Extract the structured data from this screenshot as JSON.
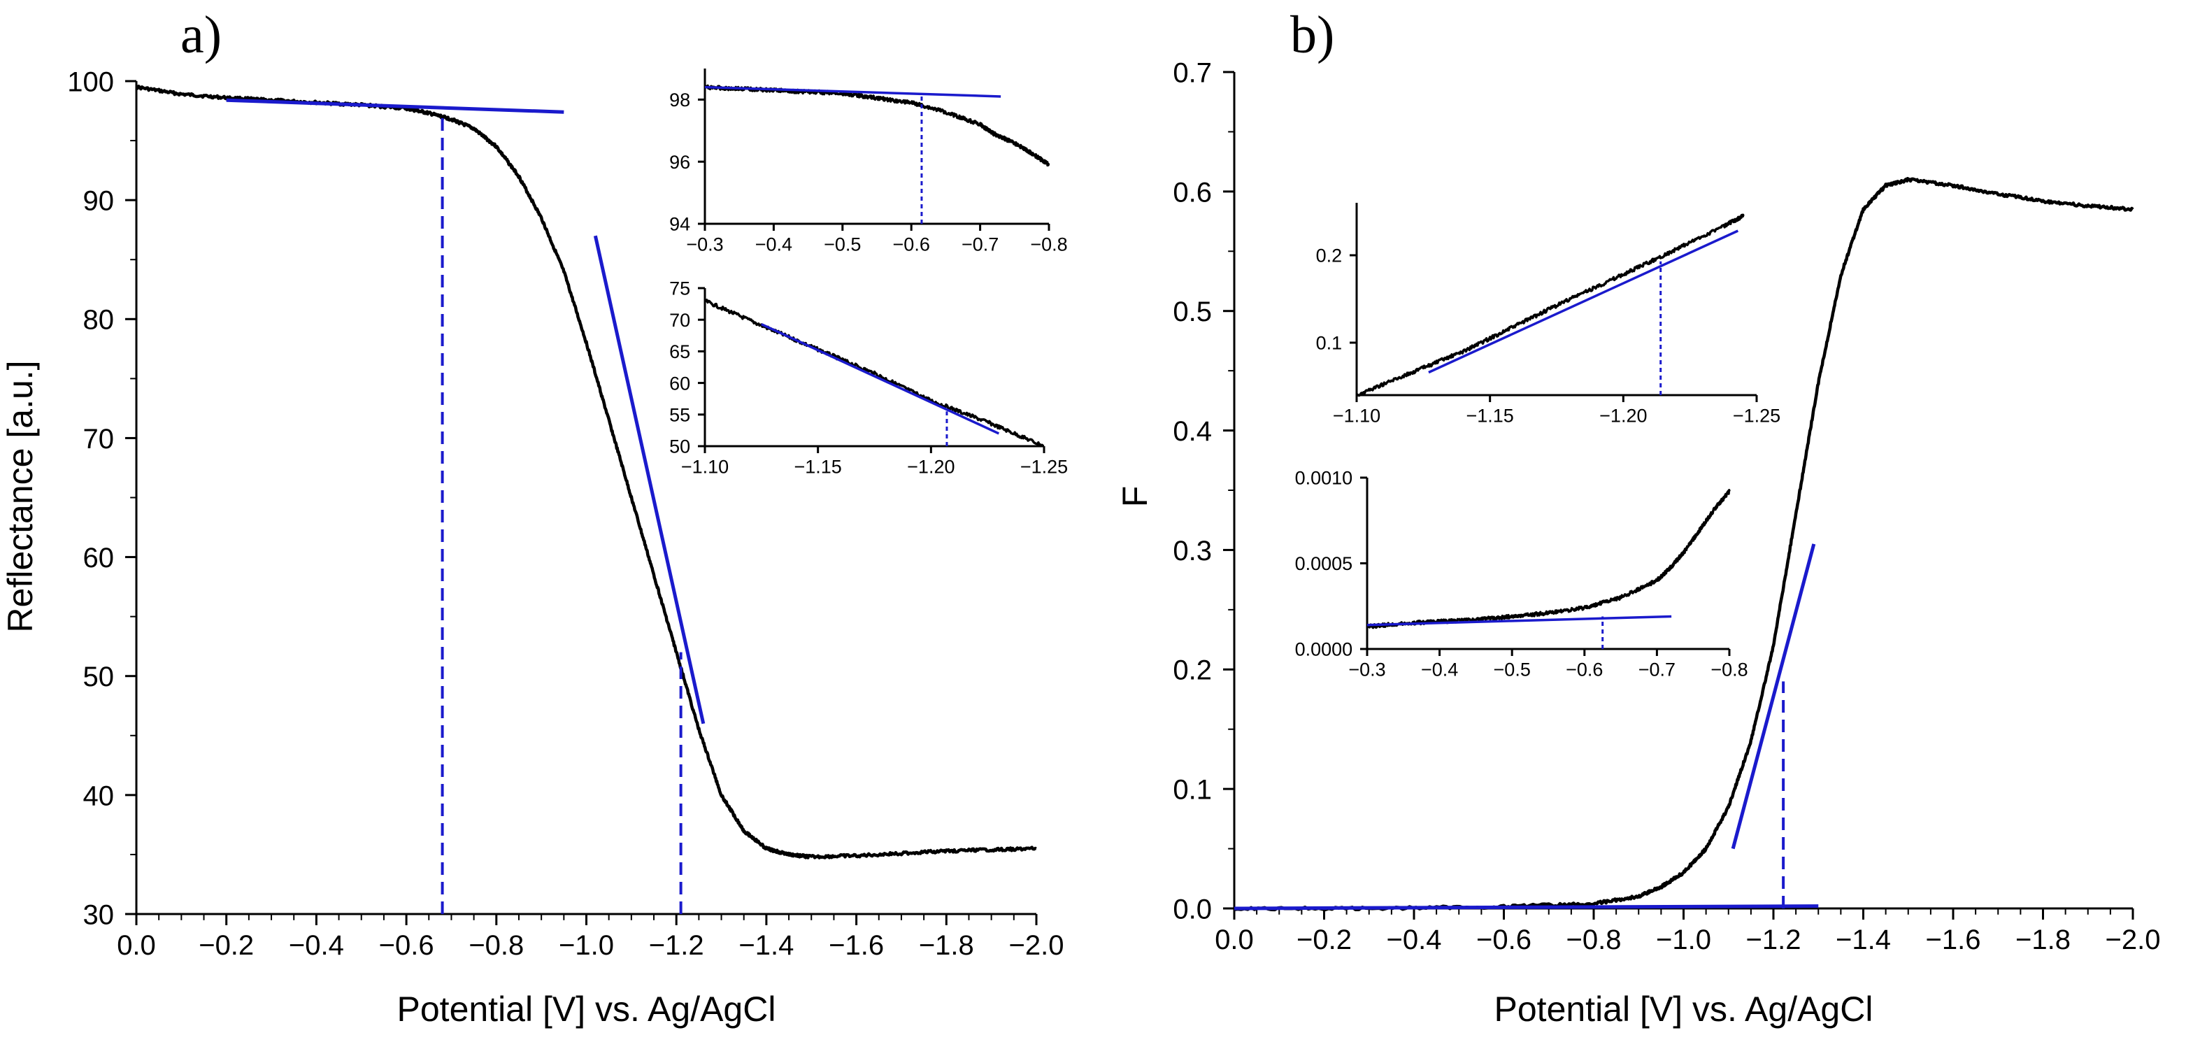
{
  "chart_data": [
    {
      "id": "a",
      "panel_label": "a)",
      "type": "line",
      "xlabel": "Potential [V] vs. Ag/AgCl",
      "ylabel": "Reflectance [a.u.]",
      "xlim": [
        0.0,
        -2.0
      ],
      "ylim": [
        30,
        100
      ],
      "x_ticks": [
        0.0,
        -0.2,
        -0.4,
        -0.6,
        -0.8,
        -1.0,
        -1.2,
        -1.4,
        -1.6,
        -1.8,
        -2.0
      ],
      "x_tick_labels": [
        "0.0",
        "−0.2",
        "−0.4",
        "−0.6",
        "−0.8",
        "−1.0",
        "−1.2",
        "−1.4",
        "−1.6",
        "−1.8",
        "−2.0"
      ],
      "y_ticks": [
        30,
        40,
        50,
        60,
        70,
        80,
        90,
        100
      ],
      "y_tick_labels": [
        "30",
        "40",
        "50",
        "60",
        "70",
        "80",
        "90",
        "100"
      ],
      "line_color": "#000000",
      "fit_color": "#1a1acc",
      "series": [
        {
          "name": "Reflectance",
          "x": [
            0.0,
            -0.1,
            -0.2,
            -0.3,
            -0.4,
            -0.5,
            -0.6,
            -0.65,
            -0.7,
            -0.75,
            -0.8,
            -0.85,
            -0.9,
            -0.95,
            -1.0,
            -1.05,
            -1.1,
            -1.15,
            -1.2,
            -1.25,
            -1.3,
            -1.35,
            -1.4,
            -1.45,
            -1.5,
            -1.6,
            -1.7,
            -1.8,
            -1.9,
            -2.0
          ],
          "y": [
            99.5,
            98.9,
            98.6,
            98.4,
            98.2,
            98.0,
            97.7,
            97.3,
            96.8,
            96.0,
            94.5,
            92.0,
            88.5,
            84.0,
            78.0,
            71.5,
            65.0,
            58.5,
            52.0,
            45.5,
            40.0,
            37.0,
            35.5,
            35.0,
            34.8,
            34.9,
            35.1,
            35.3,
            35.4,
            35.5
          ]
        }
      ],
      "fit_lines": [
        {
          "x": [
            -0.2,
            -0.95
          ],
          "y": [
            98.4,
            97.4
          ]
        },
        {
          "x": [
            -1.02,
            -1.26
          ],
          "y": [
            87.0,
            46.0
          ]
        }
      ],
      "guides": [
        {
          "x": -0.68,
          "y_from": 30,
          "y_to": 97.4
        },
        {
          "x": -1.21,
          "y_from": 30,
          "y_to": 52.0
        }
      ],
      "insets": [
        {
          "id": "a-top",
          "xlim": [
            -0.3,
            -0.8
          ],
          "ylim": [
            94,
            99
          ],
          "x_ticks": [
            -0.3,
            -0.4,
            -0.5,
            -0.6,
            -0.7,
            -0.8
          ],
          "x_tick_labels": [
            "−0.3",
            "−0.4",
            "−0.5",
            "−0.6",
            "−0.7",
            "−0.8"
          ],
          "y_ticks": [
            94,
            96,
            98
          ],
          "y_tick_labels": [
            "94",
            "96",
            "98"
          ],
          "series": {
            "x": [
              -0.3,
              -0.35,
              -0.4,
              -0.45,
              -0.5,
              -0.55,
              -0.6,
              -0.65,
              -0.7,
              -0.72,
              -0.75,
              -0.78,
              -0.8
            ],
            "y": [
              98.4,
              98.35,
              98.3,
              98.25,
              98.2,
              98.05,
              97.9,
              97.6,
              97.2,
              96.9,
              96.6,
              96.2,
              95.9
            ]
          },
          "fit": {
            "x": [
              -0.3,
              -0.73
            ],
            "y": [
              98.4,
              98.1
            ]
          },
          "guide": {
            "x": -0.615,
            "y_from": 94,
            "y_to": 98.15
          }
        },
        {
          "id": "a-bottom",
          "xlim": [
            -1.1,
            -1.25
          ],
          "ylim": [
            50,
            75
          ],
          "x_ticks": [
            -1.1,
            -1.15,
            -1.2,
            -1.25
          ],
          "x_tick_labels": [
            "−1.10",
            "−1.15",
            "−1.20",
            "−1.25"
          ],
          "y_ticks": [
            50,
            55,
            60,
            65,
            70,
            75
          ],
          "y_tick_labels": [
            "50",
            "55",
            "60",
            "65",
            "70",
            "75"
          ],
          "series": {
            "x": [
              -1.1,
              -1.125,
              -1.15,
              -1.175,
              -1.2,
              -1.225,
              -1.25
            ],
            "y": [
              73.0,
              69.1,
              65.3,
              61.5,
              57.2,
              53.8,
              50.0
            ]
          },
          "fit": {
            "x": [
              -1.125,
              -1.23
            ],
            "y": [
              69.3,
              52.0
            ]
          },
          "guide": {
            "x": -1.207,
            "y_from": 50,
            "y_to": 55.5
          }
        }
      ]
    },
    {
      "id": "b",
      "panel_label": "b)",
      "type": "line",
      "xlabel": "Potential [V] vs. Ag/AgCl",
      "ylabel": "F",
      "xlim": [
        0.0,
        -2.0
      ],
      "ylim": [
        0.0,
        0.7
      ],
      "x_ticks": [
        0.0,
        -0.2,
        -0.4,
        -0.6,
        -0.8,
        -1.0,
        -1.2,
        -1.4,
        -1.6,
        -1.8,
        -2.0
      ],
      "x_tick_labels": [
        "0.0",
        "−0.2",
        "−0.4",
        "−0.6",
        "−0.8",
        "−1.0",
        "−1.2",
        "−1.4",
        "−1.6",
        "−1.8",
        "−2.0"
      ],
      "y_ticks": [
        0.0,
        0.1,
        0.2,
        0.3,
        0.4,
        0.5,
        0.6,
        0.7
      ],
      "y_tick_labels": [
        "0.0",
        "0.1",
        "0.2",
        "0.3",
        "0.4",
        "0.5",
        "0.6",
        "0.7"
      ],
      "line_color": "#000000",
      "fit_color": "#1a1acc",
      "series": [
        {
          "name": "F",
          "x": [
            0.0,
            -0.3,
            -0.6,
            -0.8,
            -0.9,
            -0.95,
            -1.0,
            -1.05,
            -1.1,
            -1.15,
            -1.2,
            -1.25,
            -1.3,
            -1.35,
            -1.4,
            -1.45,
            -1.5,
            -1.6,
            -1.7,
            -1.8,
            -1.9,
            -2.0
          ],
          "y": [
            0.0,
            0.0,
            0.0015,
            0.004,
            0.01,
            0.018,
            0.03,
            0.05,
            0.085,
            0.14,
            0.22,
            0.33,
            0.44,
            0.53,
            0.585,
            0.605,
            0.61,
            0.605,
            0.598,
            0.592,
            0.588,
            0.585
          ]
        }
      ],
      "fit_lines": [
        {
          "x": [
            0.0,
            -1.3
          ],
          "y": [
            0.0,
            0.002
          ]
        },
        {
          "x": [
            -1.11,
            -1.29
          ],
          "y": [
            0.05,
            0.305
          ]
        }
      ],
      "guides": [
        {
          "x": -1.222,
          "y_from": 0.0,
          "y_to": 0.19
        }
      ],
      "insets": [
        {
          "id": "b-top",
          "xlim": [
            -1.1,
            -1.25
          ],
          "ylim": [
            0.04,
            0.26
          ],
          "x_ticks": [
            -1.1,
            -1.15,
            -1.2,
            -1.25
          ],
          "x_tick_labels": [
            "−1.10",
            "−1.15",
            "−1.20",
            "−1.25"
          ],
          "y_ticks": [
            0.1,
            0.2
          ],
          "y_tick_labels": [
            "0.1",
            "0.2"
          ],
          "series": {
            "x": [
              -1.1,
              -1.12,
              -1.14,
              -1.16,
              -1.18,
              -1.2,
              -1.22,
              -1.24,
              -1.245
            ],
            "y": [
              0.04,
              0.065,
              0.09,
              0.12,
              0.15,
              0.178,
              0.207,
              0.237,
              0.245
            ]
          },
          "fit": {
            "x": [
              -1.127,
              -1.243
            ],
            "y": [
              0.066,
              0.228
            ]
          },
          "guide": {
            "x": -1.214,
            "y_from": 0.04,
            "y_to": 0.193
          }
        },
        {
          "id": "b-bottom",
          "xlim": [
            -0.3,
            -0.8
          ],
          "ylim": [
            0.0,
            0.001
          ],
          "x_ticks": [
            -0.3,
            -0.4,
            -0.5,
            -0.6,
            -0.7,
            -0.8
          ],
          "x_tick_labels": [
            "−0.3",
            "−0.4",
            "−0.5",
            "−0.6",
            "−0.7",
            "−0.8"
          ],
          "y_ticks": [
            0.0,
            0.0005,
            0.001
          ],
          "y_tick_labels": [
            "0.0000",
            "0.0005",
            "0.0010"
          ],
          "series": {
            "x": [
              -0.3,
              -0.35,
              -0.4,
              -0.45,
              -0.5,
              -0.55,
              -0.6,
              -0.65,
              -0.7,
              -0.72,
              -0.74,
              -0.76,
              -0.78,
              -0.8
            ],
            "y": [
              0.00013,
              0.00015,
              0.00016,
              0.00017,
              0.00019,
              0.00021,
              0.00024,
              0.0003,
              0.0004,
              0.00048,
              0.00058,
              0.0007,
              0.00082,
              0.00092
            ]
          },
          "fit": {
            "x": [
              -0.3,
              -0.72
            ],
            "y": [
              0.00014,
              0.00019
            ]
          },
          "guide": {
            "x": -0.625,
            "y_from": 0.0,
            "y_to": 0.00019
          }
        }
      ]
    }
  ]
}
